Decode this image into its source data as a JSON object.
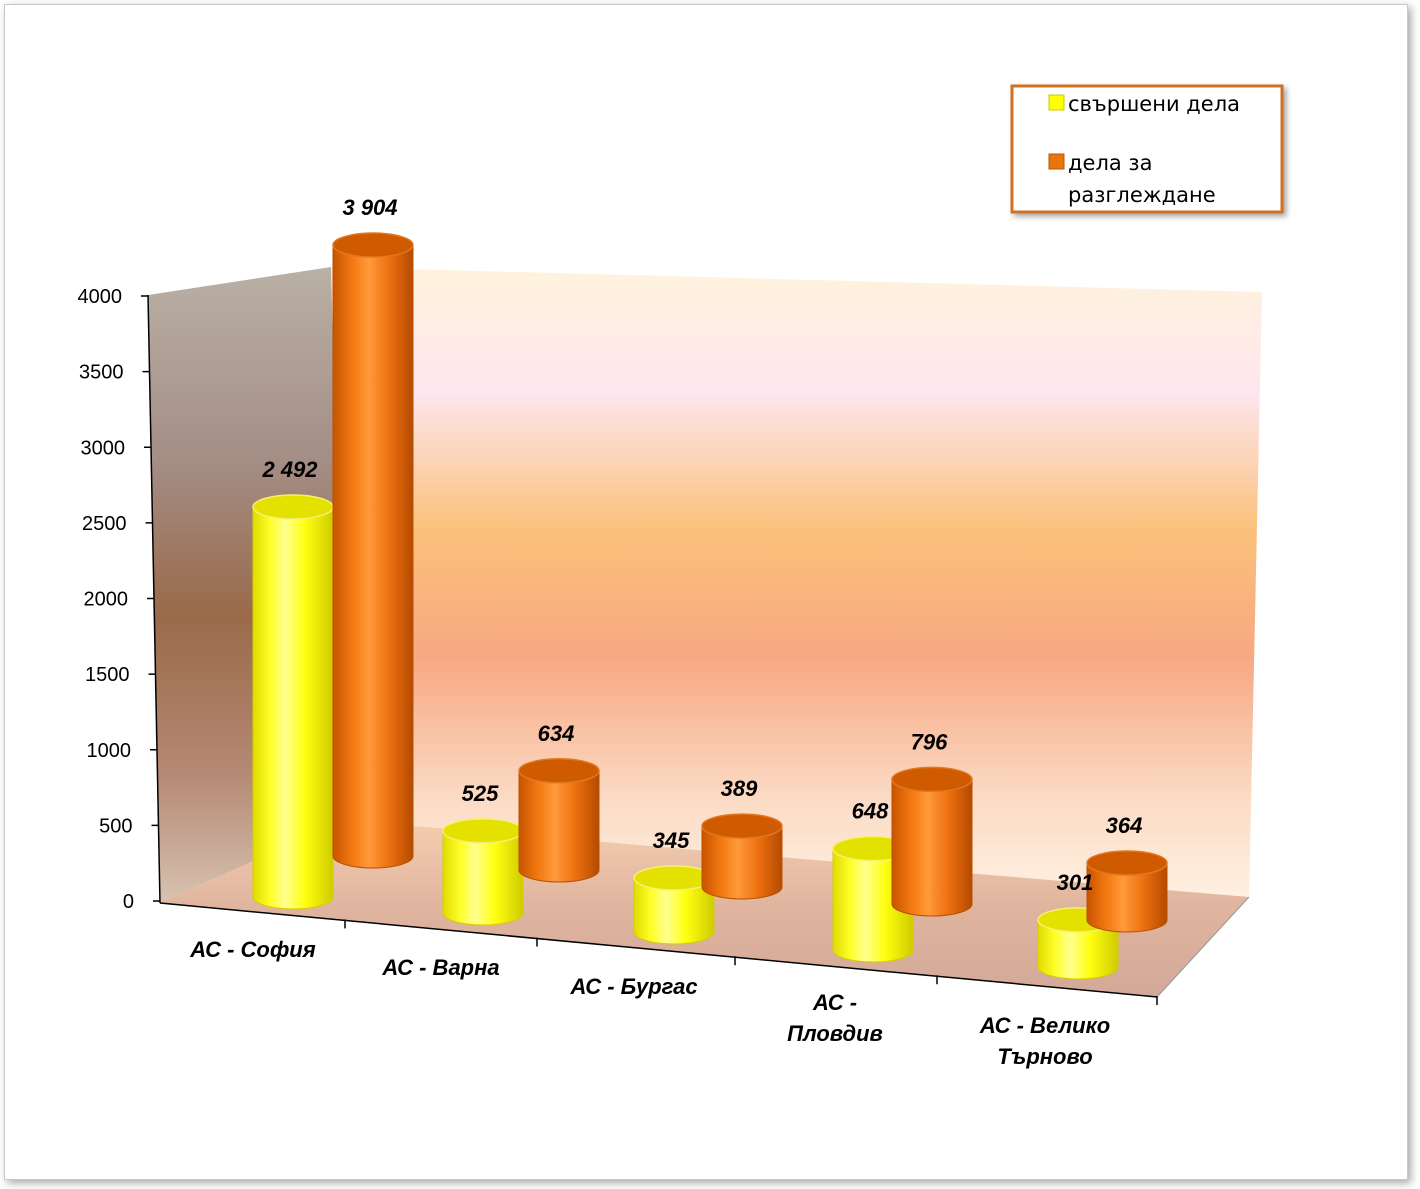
{
  "chart_data": {
    "type": "bar",
    "style": "3d-cylinder",
    "categories": [
      "АС - София",
      "АС - Варна",
      "АС - Бургас",
      "АС - Пловдив",
      "АС - Велико Търново"
    ],
    "category_lines": [
      [
        "АС - София"
      ],
      [
        "АС - Варна"
      ],
      [
        "АС - Бургас"
      ],
      [
        "АС -",
        "Пловдив"
      ],
      [
        "АС - Велико",
        "Търново"
      ]
    ],
    "series": [
      {
        "name": "свършени дела",
        "values": [
          2492,
          525,
          345,
          648,
          301
        ],
        "labels": [
          "2 492",
          "525",
          "345",
          "648",
          "301"
        ],
        "color": "#FFFF00"
      },
      {
        "name": "дела за разглеждане",
        "values": [
          3904,
          634,
          389,
          796,
          364
        ],
        "labels": [
          "3 904",
          "634",
          "389",
          "796",
          "364"
        ],
        "color": "#F07A10"
      }
    ],
    "legend_lines": [
      [
        "свършени дела"
      ],
      [
        "дела за",
        "разглеждане"
      ]
    ],
    "ylim": [
      0,
      4000
    ],
    "yticks": [
      "0",
      "500",
      "1000",
      "1500",
      "2000",
      "2500",
      "3000",
      "3500",
      "4000"
    ],
    "legend_position": "top-right",
    "grid": false
  }
}
